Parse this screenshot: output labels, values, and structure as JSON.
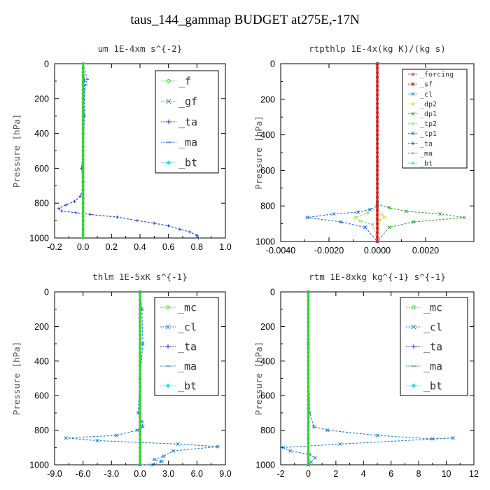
{
  "page_title": "taus_144_gammap  BUDGET at275E,-17N",
  "chart_data": [
    {
      "type": "line",
      "title": "um  1E-4xm s^{-2}",
      "ylabel": "Pressure [hPa]",
      "xlim": [
        -0.2,
        1.0
      ],
      "ylim": [
        0,
        1000
      ],
      "y_inverted": true,
      "xticks": [
        -0.2,
        0,
        0.2,
        0.4,
        0.6,
        0.8,
        1.0
      ],
      "xtick_labels": [
        "-0.2",
        "0.0",
        "0.2",
        "0.4",
        "0.6",
        "0.8",
        "1.0"
      ],
      "yticks": [
        0,
        200,
        400,
        600,
        800,
        1000
      ],
      "ytick_labels": [
        "0",
        "200",
        "400",
        "600",
        "800",
        "1000"
      ],
      "legend_position": "top-right",
      "legend": [
        "_f",
        "_gf",
        "_ta",
        "_ma",
        "_bt"
      ],
      "series": [
        {
          "name": "_ta",
          "color": "#1a3fd6",
          "x": [
            0,
            0.01,
            0.01,
            0,
            -0.01,
            0,
            0,
            -0.02,
            -0.06,
            -0.12,
            -0.17,
            -0.15,
            -0.05,
            0.05,
            0.24,
            0.38,
            0.5,
            0.6,
            0.68,
            0.75,
            0.8,
            0.81
          ],
          "y": [
            0,
            100,
            300,
            500,
            600,
            680,
            720,
            760,
            790,
            810,
            830,
            845,
            855,
            865,
            880,
            900,
            915,
            930,
            950,
            965,
            985,
            1000
          ]
        },
        {
          "name": "_ma",
          "color": "#1c7ed6",
          "x": [
            0,
            0.03,
            0.02,
            0.01,
            0,
            0,
            0,
            0
          ],
          "y": [
            0,
            90,
            120,
            150,
            200,
            400,
            800,
            1000
          ]
        },
        {
          "name": "_f",
          "color": "#2fd62f",
          "x": [
            0,
            0,
            0,
            0,
            0,
            0
          ],
          "y": [
            0,
            200,
            400,
            600,
            800,
            1000
          ]
        }
      ]
    },
    {
      "type": "line",
      "title": "rtpthlp  1E-4x(kg K)/(kg s)",
      "ylabel": "Pressure [hPa]",
      "xlim": [
        -0.004,
        0.004
      ],
      "ylim": [
        0,
        1000
      ],
      "y_inverted": true,
      "xticks": [
        -0.004,
        -0.002,
        0,
        0.002
      ],
      "xtick_labels": [
        "-0.0040",
        "-0.0020",
        "0.0000",
        "0.0020"
      ],
      "yticks": [
        0,
        200,
        400,
        600,
        800,
        1000
      ],
      "ytick_labels": [
        "0",
        "200",
        "400",
        "600",
        "800",
        "1000"
      ],
      "legend_position": "top-right",
      "legend": [
        "_forcing",
        "_sf",
        "_cl",
        "_dp2",
        "_dp1",
        "_tp2",
        "_tp1",
        "_ta",
        "_ma",
        "_bt"
      ],
      "series": [
        {
          "name": "_dp1",
          "color": "#2fa82f",
          "x": [
            0,
            0,
            0.0005,
            0.0012,
            0.0026,
            0.0036,
            0.0015,
            0.0005,
            0
          ],
          "y": [
            0,
            790,
            810,
            830,
            845,
            865,
            890,
            920,
            1000
          ]
        },
        {
          "name": "_tp1",
          "color": "#1a6fd6",
          "x": [
            0,
            0,
            -0.0003,
            -0.0008,
            -0.0018,
            -0.0029,
            -0.0015,
            -0.0005,
            0
          ],
          "y": [
            0,
            800,
            820,
            835,
            845,
            865,
            890,
            920,
            1000
          ]
        },
        {
          "name": "_tp2",
          "color": "#9be05a",
          "x": [
            0,
            0,
            -0.0004,
            -0.0009,
            -0.0007,
            -0.0002,
            0
          ],
          "y": [
            0,
            810,
            840,
            865,
            885,
            905,
            1000
          ]
        },
        {
          "name": "_dp2",
          "color": "#f0d020",
          "x": [
            0,
            0,
            0.0002,
            0.0003,
            0.0001,
            0
          ],
          "y": [
            0,
            830,
            850,
            865,
            880,
            1000
          ]
        },
        {
          "name": "_forcing",
          "color": "#d62020",
          "x": [
            0,
            0,
            0,
            0
          ],
          "y": [
            0,
            400,
            800,
            1000
          ]
        }
      ]
    },
    {
      "type": "line",
      "title": "thlm  1E-5xK s^{-1}",
      "ylabel": "Pressure [hPa]",
      "xlim": [
        -9,
        9
      ],
      "ylim": [
        0,
        1000
      ],
      "y_inverted": true,
      "xticks": [
        -9,
        -6,
        -3,
        0,
        3,
        6,
        9
      ],
      "xtick_labels": [
        "-9.0",
        "-6.0",
        "-3.0",
        "0.0",
        "3.0",
        "6.0",
        "9.0"
      ],
      "yticks": [
        0,
        200,
        400,
        600,
        800,
        1000
      ],
      "ytick_labels": [
        "0",
        "200",
        "400",
        "600",
        "800",
        "1000"
      ],
      "legend_position": "top-right",
      "legend": [
        "_mc",
        "_cl",
        "_ta",
        "_ma",
        "_bt"
      ],
      "series": [
        {
          "name": "_cl",
          "color": "#1c7ed6",
          "x": [
            0,
            0.2,
            0.3,
            0,
            -0.2,
            0.2,
            0.3,
            -0.3,
            -2.5,
            -7.8,
            -4.5,
            4,
            8.2,
            3.5,
            2.5,
            1.5,
            2.3,
            1.2,
            0
          ],
          "y": [
            0,
            100,
            300,
            500,
            700,
            750,
            780,
            800,
            830,
            845,
            860,
            880,
            895,
            920,
            950,
            970,
            980,
            1000,
            1000
          ]
        },
        {
          "name": "_mc",
          "color": "#2fd62f",
          "x": [
            0,
            0,
            0,
            0,
            0,
            0
          ],
          "y": [
            0,
            200,
            400,
            600,
            800,
            1000
          ]
        }
      ]
    },
    {
      "type": "line",
      "title": "rtm  1E-8xkg kg^{-1} s^{-1}",
      "ylabel": "Pressure [hPa]",
      "xlim": [
        -2,
        12
      ],
      "ylim": [
        0,
        1000
      ],
      "y_inverted": true,
      "xticks": [
        -2,
        0,
        2,
        4,
        6,
        8,
        10,
        12
      ],
      "xtick_labels": [
        "-2",
        "0",
        "2",
        "4",
        "6",
        "8",
        "10",
        "12"
      ],
      "yticks": [
        0,
        200,
        400,
        600,
        800,
        1000
      ],
      "ytick_labels": [
        "0",
        "200",
        "400",
        "600",
        "800",
        "1000"
      ],
      "legend_position": "top-right",
      "legend": [
        "_mc",
        "_cl",
        "_ta",
        "_ma",
        "_bt"
      ],
      "series": [
        {
          "name": "_cl",
          "color": "#1c7ed6",
          "x": [
            0,
            0,
            0.1,
            0.4,
            1.4,
            5,
            9,
            10.5,
            2.3,
            -1.8,
            -1.3,
            0.1,
            0.5,
            0.2,
            0
          ],
          "y": [
            0,
            300,
            700,
            780,
            800,
            830,
            850,
            845,
            880,
            900,
            920,
            940,
            960,
            985,
            1000
          ]
        },
        {
          "name": "_mc",
          "color": "#2fd62f",
          "x": [
            0,
            0,
            0,
            0,
            0,
            0
          ],
          "y": [
            0,
            200,
            400,
            600,
            800,
            1000
          ]
        }
      ]
    }
  ]
}
